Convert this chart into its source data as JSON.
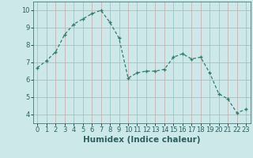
{
  "xlabel": "Humidex (Indice chaleur)",
  "x_values": [
    0,
    1,
    2,
    3,
    4,
    5,
    6,
    7,
    8,
    9,
    10,
    11,
    12,
    13,
    14,
    15,
    16,
    17,
    18,
    19,
    20,
    21,
    22,
    23
  ],
  "y_values": [
    6.7,
    7.1,
    7.6,
    8.6,
    9.2,
    9.5,
    9.8,
    10.0,
    9.3,
    8.4,
    6.1,
    6.4,
    6.5,
    6.5,
    6.6,
    7.3,
    7.5,
    7.2,
    7.3,
    6.4,
    5.2,
    4.9,
    4.1,
    4.3
  ],
  "ylim": [
    3.5,
    10.5
  ],
  "xlim": [
    -0.5,
    23.5
  ],
  "yticks": [
    4,
    5,
    6,
    7,
    8,
    9,
    10
  ],
  "xticks": [
    0,
    1,
    2,
    3,
    4,
    5,
    6,
    7,
    8,
    9,
    10,
    11,
    12,
    13,
    14,
    15,
    16,
    17,
    18,
    19,
    20,
    21,
    22,
    23
  ],
  "line_color": "#2d7d6e",
  "marker_color": "#2d7d6e",
  "bg_color": "#cce8e8",
  "grid_color": "#c8a8a8",
  "axis_bg": "#cce8e8",
  "tick_label_fontsize": 6,
  "xlabel_fontsize": 7.5
}
